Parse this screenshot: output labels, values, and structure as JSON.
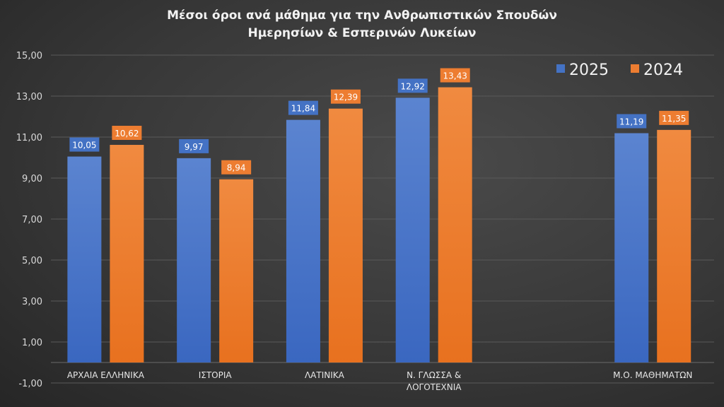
{
  "chart_data": {
    "type": "bar",
    "title": [
      "Μέσοι όροι ανά μάθημα για την Ανθρωπιστικών Σπουδών",
      "Ημερησίων & Εσπερινών Λυκείων"
    ],
    "categories": [
      [
        "ΑΡΧΑΙΑ ΕΛΛΗΝΙΚΑ"
      ],
      [
        "ΙΣΤΟΡΙΑ"
      ],
      [
        "ΛΑΤΙΝΙΚΑ"
      ],
      [
        "Ν. ΓΛΩΣΣΑ &",
        "ΛΟΓΟΤΕΧΝΙΑ"
      ],
      [
        ""
      ],
      [
        "Μ.Ο. ΜΑΘΗΜΑΤΩΝ"
      ]
    ],
    "series": [
      {
        "name": "2025",
        "color": "#4472c4",
        "values": [
          10.05,
          9.97,
          11.84,
          12.92,
          null,
          11.19
        ],
        "labels": [
          "10,05",
          "9,97",
          "11,84",
          "12,92",
          "",
          "11,19"
        ]
      },
      {
        "name": "2024",
        "color": "#ed7d31",
        "values": [
          10.62,
          8.94,
          12.39,
          13.43,
          null,
          11.35
        ],
        "labels": [
          "10,62",
          "8,94",
          "12,39",
          "13,43",
          "",
          "11,35"
        ]
      }
    ],
    "ylim": [
      -1,
      15
    ],
    "yticks": [
      -1,
      1,
      3,
      5,
      7,
      9,
      11,
      13,
      15
    ],
    "ytick_labels": [
      "-1,00",
      "1,00",
      "3,00",
      "5,00",
      "7,00",
      "9,00",
      "11,00",
      "13,00",
      "15,00"
    ],
    "xlabel": "",
    "ylabel": "",
    "grid": true,
    "legend": "top-right"
  }
}
